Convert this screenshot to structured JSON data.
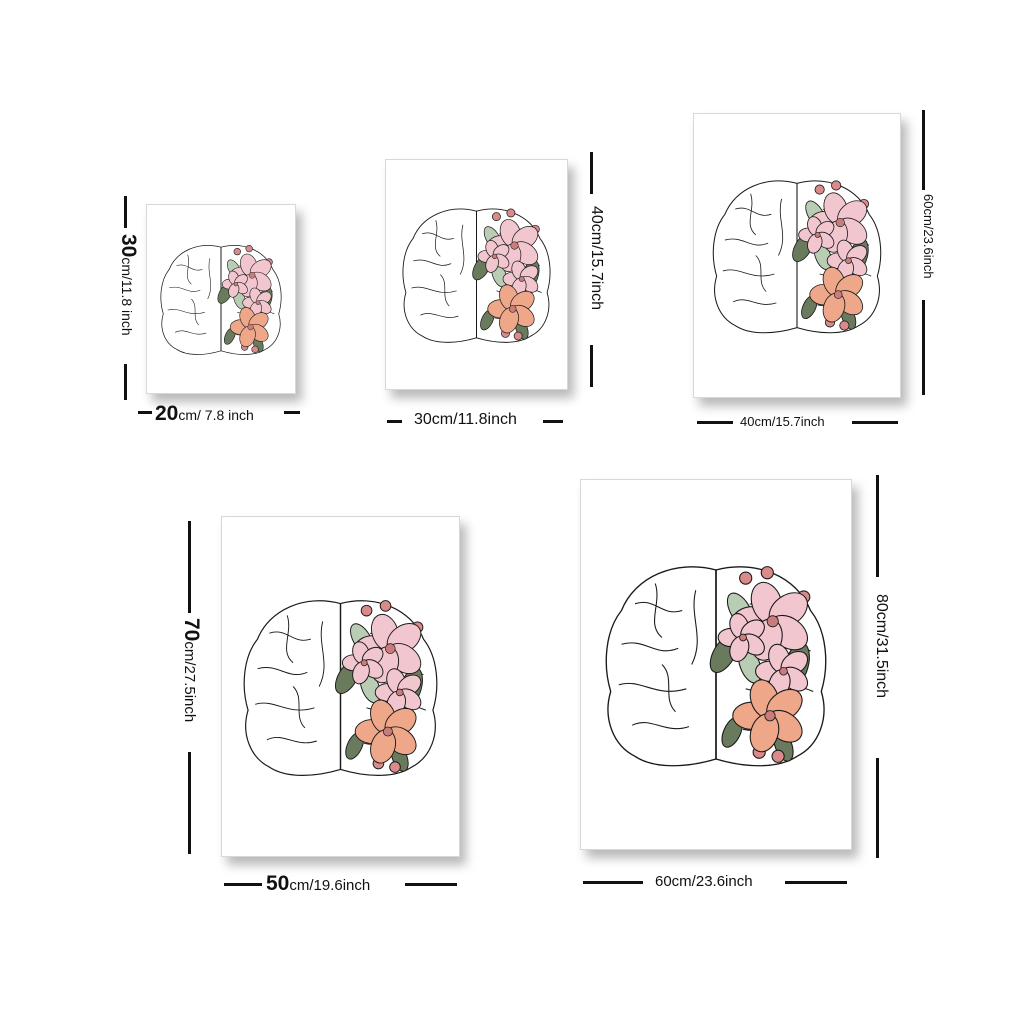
{
  "colors": {
    "pink": "#f2c6cf",
    "peach": "#eea789",
    "leaf": "#6a7a5c",
    "leaf_light": "#b9ccb4",
    "outline": "#1a1a1a"
  },
  "sizes": [
    {
      "id": "s1",
      "width_num": "20",
      "width_unit": "cm/ 7.8 inch",
      "height_num": "30",
      "height_unit": "cm/11.8 inch"
    },
    {
      "id": "s2",
      "width_text": "30cm/11.8inch",
      "height_text": "40cm/15.7inch"
    },
    {
      "id": "s3",
      "width_text": "40cm/15.7inch",
      "height_text": "60cm/23.6inch"
    },
    {
      "id": "s4",
      "width_num": "50",
      "width_unit": "cm/19.6inch",
      "height_num": "70",
      "height_unit": "cm/27.5inch"
    },
    {
      "id": "s5",
      "width_text": "60cm/23.6inch",
      "height_text": "80cm/31.5inch"
    }
  ]
}
